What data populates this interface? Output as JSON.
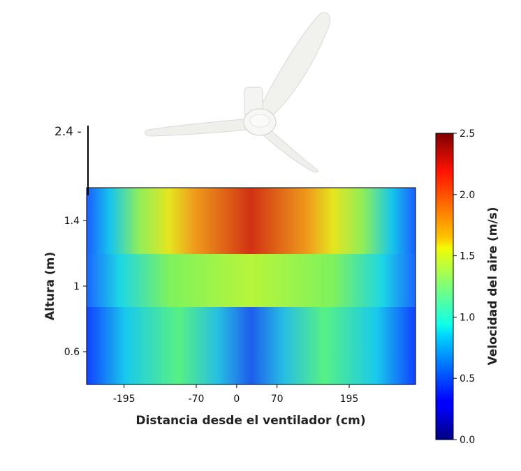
{
  "chart_data": {
    "type": "heatmap",
    "title": "",
    "xlabel": "Distancia desde el ventilador (cm)",
    "ylabel": "Altura (m)",
    "x_ticks": [
      "-195",
      "-70",
      "0",
      "70",
      "195"
    ],
    "x_tick_values": [
      -195,
      -70,
      0,
      70,
      195
    ],
    "y_ticks": [
      "0.6",
      "1",
      "1.4"
    ],
    "y_tick_values": [
      0.6,
      1.0,
      1.4
    ],
    "y_extra_tick": "2.4 -",
    "xlim": [
      -260,
      310
    ],
    "ylim": [
      0.4,
      1.6
    ],
    "colorbar": {
      "label": "Velocidad del aire (m/s)",
      "ticks": [
        "0.0",
        "0.5",
        "1.0",
        "1.5",
        "2.0",
        "2.5"
      ],
      "tick_values": [
        0.0,
        0.5,
        1.0,
        1.5,
        2.0,
        2.5
      ],
      "range": [
        0.0,
        2.5
      ],
      "colormap": "jet"
    },
    "grid": false,
    "legend": "none",
    "image_note_icon": "ceiling-fan-icon"
  }
}
